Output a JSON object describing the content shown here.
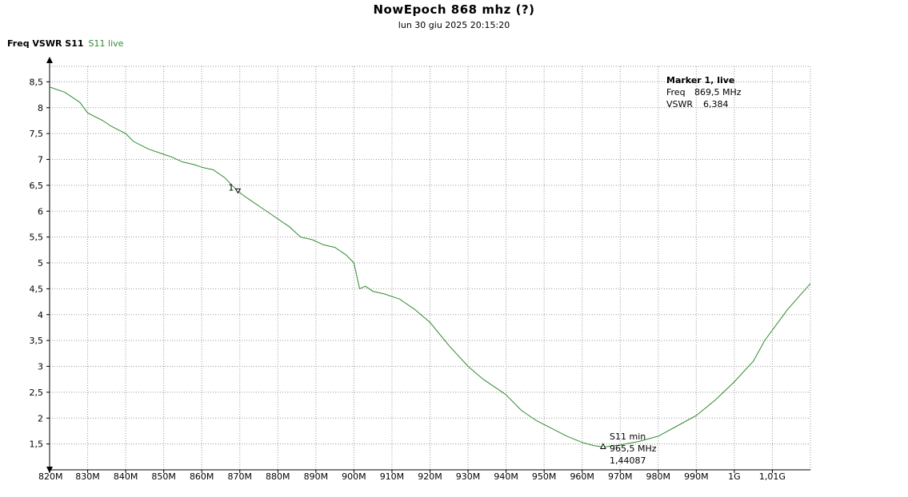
{
  "chart_data": {
    "type": "line",
    "title": "NowEpoch 868 mhz (?)",
    "subtitle": "lun 30 giu 2025 20:15:20",
    "xlabel": "Freq",
    "ylabel": "VSWR S11",
    "xlim": [
      820,
      1020
    ],
    "ylim": [
      1.0,
      8.8
    ],
    "grid": true,
    "x_ticks": [
      {
        "v": 820,
        "label": "820M"
      },
      {
        "v": 830,
        "label": "830M"
      },
      {
        "v": 840,
        "label": "840M"
      },
      {
        "v": 850,
        "label": "850M"
      },
      {
        "v": 860,
        "label": "860M"
      },
      {
        "v": 870,
        "label": "870M"
      },
      {
        "v": 880,
        "label": "880M"
      },
      {
        "v": 890,
        "label": "890M"
      },
      {
        "v": 900,
        "label": "900M"
      },
      {
        "v": 910,
        "label": "910M"
      },
      {
        "v": 920,
        "label": "920M"
      },
      {
        "v": 930,
        "label": "930M"
      },
      {
        "v": 940,
        "label": "940M"
      },
      {
        "v": 950,
        "label": "950M"
      },
      {
        "v": 960,
        "label": "960M"
      },
      {
        "v": 970,
        "label": "970M"
      },
      {
        "v": 980,
        "label": "980M"
      },
      {
        "v": 990,
        "label": "990M"
      },
      {
        "v": 1000,
        "label": "1G"
      },
      {
        "v": 1010,
        "label": "1,01G"
      }
    ],
    "y_ticks": [
      {
        "v": 1.5,
        "label": "1,5"
      },
      {
        "v": 2,
        "label": "2"
      },
      {
        "v": 2.5,
        "label": "2,5"
      },
      {
        "v": 3,
        "label": "3"
      },
      {
        "v": 3.5,
        "label": "3,5"
      },
      {
        "v": 4,
        "label": "4"
      },
      {
        "v": 4.5,
        "label": "4,5"
      },
      {
        "v": 5,
        "label": "5"
      },
      {
        "v": 5.5,
        "label": "5,5"
      },
      {
        "v": 6,
        "label": "6"
      },
      {
        "v": 6.5,
        "label": "6,5"
      },
      {
        "v": 7,
        "label": "7"
      },
      {
        "v": 7.5,
        "label": "7,5"
      },
      {
        "v": 8,
        "label": "8"
      },
      {
        "v": 8.5,
        "label": "8,5"
      }
    ],
    "series": [
      {
        "name": "S11 live",
        "color": "#2e8b2e",
        "points": [
          [
            820,
            8.4
          ],
          [
            824,
            8.3
          ],
          [
            828,
            8.1
          ],
          [
            830,
            7.9
          ],
          [
            834,
            7.75
          ],
          [
            836,
            7.65
          ],
          [
            840,
            7.5
          ],
          [
            842,
            7.35
          ],
          [
            846,
            7.2
          ],
          [
            850,
            7.1
          ],
          [
            852,
            7.05
          ],
          [
            855,
            6.95
          ],
          [
            858,
            6.9
          ],
          [
            860,
            6.85
          ],
          [
            863,
            6.8
          ],
          [
            866,
            6.65
          ],
          [
            869.5,
            6.384
          ],
          [
            872,
            6.25
          ],
          [
            876,
            6.05
          ],
          [
            880,
            5.85
          ],
          [
            883,
            5.7
          ],
          [
            886,
            5.5
          ],
          [
            889,
            5.45
          ],
          [
            892,
            5.35
          ],
          [
            895,
            5.3
          ],
          [
            898,
            5.15
          ],
          [
            900,
            5.0
          ],
          [
            901.5,
            4.5
          ],
          [
            903,
            4.55
          ],
          [
            905,
            4.45
          ],
          [
            908,
            4.4
          ],
          [
            912,
            4.3
          ],
          [
            916,
            4.1
          ],
          [
            920,
            3.85
          ],
          [
            925,
            3.4
          ],
          [
            930,
            3.0
          ],
          [
            934,
            2.75
          ],
          [
            938,
            2.55
          ],
          [
            940,
            2.45
          ],
          [
            944,
            2.15
          ],
          [
            948,
            1.95
          ],
          [
            952,
            1.8
          ],
          [
            956,
            1.65
          ],
          [
            960,
            1.53
          ],
          [
            963,
            1.47
          ],
          [
            965.5,
            1.44087
          ],
          [
            970,
            1.48
          ],
          [
            975,
            1.55
          ],
          [
            980,
            1.65
          ],
          [
            985,
            1.85
          ],
          [
            990,
            2.05
          ],
          [
            995,
            2.35
          ],
          [
            1000,
            2.7
          ],
          [
            1005,
            3.1
          ],
          [
            1008,
            3.5
          ],
          [
            1012,
            3.9
          ],
          [
            1014,
            4.1
          ],
          [
            1017,
            4.35
          ],
          [
            1020,
            4.6
          ]
        ]
      }
    ],
    "markers": [
      {
        "label": "1",
        "x": 869.5,
        "y": 6.384
      },
      {
        "label": "",
        "x": 965.5,
        "y": 1.44087
      }
    ],
    "marker_box": {
      "title": "Marker 1, live",
      "freq_label": "Freq",
      "freq_value": "869,5 MHz",
      "vswr_label": "VSWR",
      "vswr_value": "6,384"
    },
    "min_annotation": {
      "line1": "S11 min",
      "line2": "965,5 MHz",
      "line3": "1,44087"
    }
  }
}
